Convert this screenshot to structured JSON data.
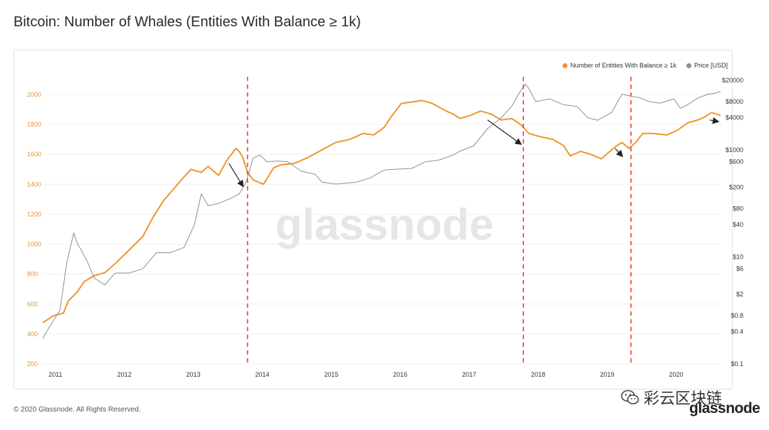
{
  "page": {
    "title": "Bitcoin: Number of Whales (Entities With Balance ≥ 1k)",
    "copyright": "© 2020 Glassnode. All Rights Reserved.",
    "watermark": "glassnode",
    "wechat_label": "彩云区块链",
    "brand_logo": "glassnode"
  },
  "legend": {
    "whales_label": "Number of Entities With Balance ≥ 1k",
    "price_label": "Price [USD]"
  },
  "colors": {
    "whales": "#f0952f",
    "price": "#8f8f8f",
    "marker": "#ee3a3a",
    "left_axis_text": "#e8923a",
    "arrow": "#222222"
  },
  "chart_data": {
    "type": "line",
    "x_tick_labels": [
      "2011",
      "2012",
      "2013",
      "2014",
      "2015",
      "2016",
      "2017",
      "2018",
      "2019",
      "2020"
    ],
    "x_tick_values": [
      2011.0,
      2012.0,
      2013.0,
      2014.0,
      2015.0,
      2016.0,
      2017.0,
      2018.0,
      2019.0,
      2020.0
    ],
    "xlim": [
      2010.95,
      2020.78
    ],
    "y_left": {
      "ticks": [
        200,
        400,
        600,
        800,
        1000,
        1200,
        1400,
        1600,
        1800,
        2000
      ],
      "lim": [
        200,
        2000
      ]
    },
    "y_right": {
      "scale": "log",
      "ticks": [
        0.1,
        0.4,
        0.8,
        2,
        6,
        10,
        40,
        80,
        200,
        600,
        1000,
        4000,
        8000,
        20000
      ],
      "tick_labels": [
        "$0.1",
        "$0.4",
        "$0.8",
        "$2",
        "$6",
        "$10",
        "$40",
        "$80",
        "$200",
        "$600",
        "$1000",
        "$4000",
        "$8000",
        "$20000"
      ]
    },
    "series": [
      {
        "name": "Number of Entities With Balance ≥ 1k",
        "axis": "left",
        "x": [
          2010.95,
          2011.1,
          2011.25,
          2011.32,
          2011.45,
          2011.55,
          2011.7,
          2011.85,
          2012.0,
          2012.2,
          2012.4,
          2012.55,
          2012.7,
          2012.85,
          2013.0,
          2013.1,
          2013.25,
          2013.35,
          2013.5,
          2013.62,
          2013.75,
          2013.8,
          2013.85,
          2013.92,
          2014.0,
          2014.15,
          2014.3,
          2014.4,
          2014.6,
          2014.8,
          2015.0,
          2015.2,
          2015.4,
          2015.6,
          2015.75,
          2015.9,
          2016.0,
          2016.15,
          2016.3,
          2016.45,
          2016.6,
          2016.8,
          2016.9,
          2017.0,
          2017.15,
          2017.3,
          2017.45,
          2017.6,
          2017.75,
          2017.88,
          2018.0,
          2018.15,
          2018.35,
          2018.5,
          2018.6,
          2018.75,
          2018.9,
          2019.05,
          2019.15,
          2019.25,
          2019.35,
          2019.45,
          2019.55,
          2019.65,
          2019.8,
          2020.0,
          2020.15,
          2020.3,
          2020.45,
          2020.55,
          2020.65,
          2020.78
        ],
        "y": [
          475,
          520,
          540,
          620,
          680,
          750,
          790,
          810,
          870,
          960,
          1050,
          1180,
          1290,
          1370,
          1450,
          1500,
          1480,
          1520,
          1460,
          1560,
          1640,
          1620,
          1580,
          1480,
          1430,
          1400,
          1510,
          1530,
          1540,
          1580,
          1630,
          1680,
          1700,
          1740,
          1730,
          1780,
          1850,
          1940,
          1950,
          1960,
          1940,
          1890,
          1870,
          1840,
          1860,
          1890,
          1870,
          1830,
          1840,
          1800,
          1740,
          1720,
          1700,
          1660,
          1590,
          1620,
          1600,
          1570,
          1610,
          1650,
          1680,
          1640,
          1680,
          1740,
          1740,
          1730,
          1760,
          1810,
          1830,
          1850,
          1880,
          1860
        ]
      },
      {
        "name": "Price [USD]",
        "axis": "right",
        "x": [
          2010.95,
          2011.05,
          2011.2,
          2011.3,
          2011.4,
          2011.45,
          2011.5,
          2011.6,
          2011.7,
          2011.85,
          2012.0,
          2012.2,
          2012.4,
          2012.6,
          2012.8,
          2013.0,
          2013.15,
          2013.25,
          2013.35,
          2013.5,
          2013.65,
          2013.8,
          2013.9,
          2014.0,
          2014.1,
          2014.2,
          2014.35,
          2014.5,
          2014.7,
          2014.9,
          2015.0,
          2015.2,
          2015.5,
          2015.7,
          2015.9,
          2016.0,
          2016.3,
          2016.5,
          2016.7,
          2016.9,
          2017.0,
          2017.2,
          2017.4,
          2017.6,
          2017.75,
          2017.85,
          2017.95,
          2018.0,
          2018.1,
          2018.3,
          2018.5,
          2018.7,
          2018.85,
          2019.0,
          2019.2,
          2019.35,
          2019.5,
          2019.6,
          2019.75,
          2019.9,
          2020.1,
          2020.2,
          2020.3,
          2020.45,
          2020.6,
          2020.7,
          2020.78
        ],
        "y": [
          0.3,
          0.5,
          1,
          8,
          28,
          18,
          14,
          8,
          4,
          3,
          5,
          5,
          6,
          12,
          12,
          15,
          40,
          150,
          90,
          100,
          120,
          150,
          250,
          700,
          800,
          600,
          620,
          600,
          400,
          350,
          250,
          230,
          250,
          300,
          420,
          430,
          450,
          600,
          650,
          800,
          950,
          1200,
          2500,
          4000,
          6500,
          11000,
          17000,
          14000,
          8000,
          9000,
          7000,
          6500,
          4000,
          3600,
          5000,
          11000,
          10000,
          9500,
          8000,
          7500,
          9000,
          6000,
          7000,
          9300,
          11000,
          11500,
          12500
        ]
      }
    ],
    "markers": {
      "type": "vertical-dashed-lines",
      "x": [
        2013.92,
        2017.92,
        2019.48
      ]
    },
    "arrows": [
      {
        "from": [
          2013.65,
          1540
        ],
        "to": [
          2013.85,
          1390
        ]
      },
      {
        "from": [
          2017.4,
          1830
        ],
        "to": [
          2017.88,
          1670
        ]
      },
      {
        "from": [
          2019.25,
          1640
        ],
        "to": [
          2019.35,
          1590
        ]
      },
      {
        "from": [
          2020.62,
          1830
        ],
        "to": [
          2020.74,
          1820
        ]
      }
    ]
  }
}
